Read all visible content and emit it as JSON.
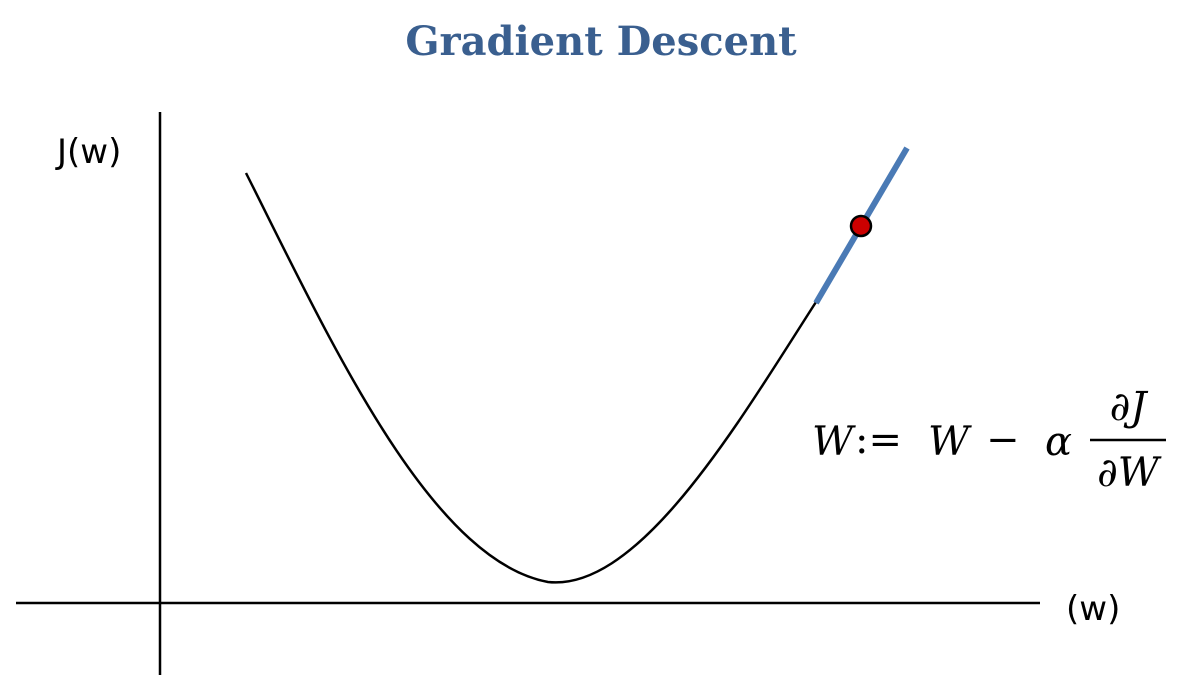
{
  "title": "Gradient Descent",
  "y_axis_label": "J(w)",
  "x_axis_label": "(w)",
  "formula": {
    "lhs": "W",
    "assign": ":=",
    "rhs_var": "W",
    "minus": "−",
    "alpha": "α",
    "numerator": "∂J",
    "denominator": "∂W"
  },
  "colors": {
    "title": "#3a5f8f",
    "curve": "#000000",
    "axes": "#000000",
    "tangent": "#4a7ab5",
    "point_fill": "#cc0000",
    "point_stroke": "#000000"
  }
}
